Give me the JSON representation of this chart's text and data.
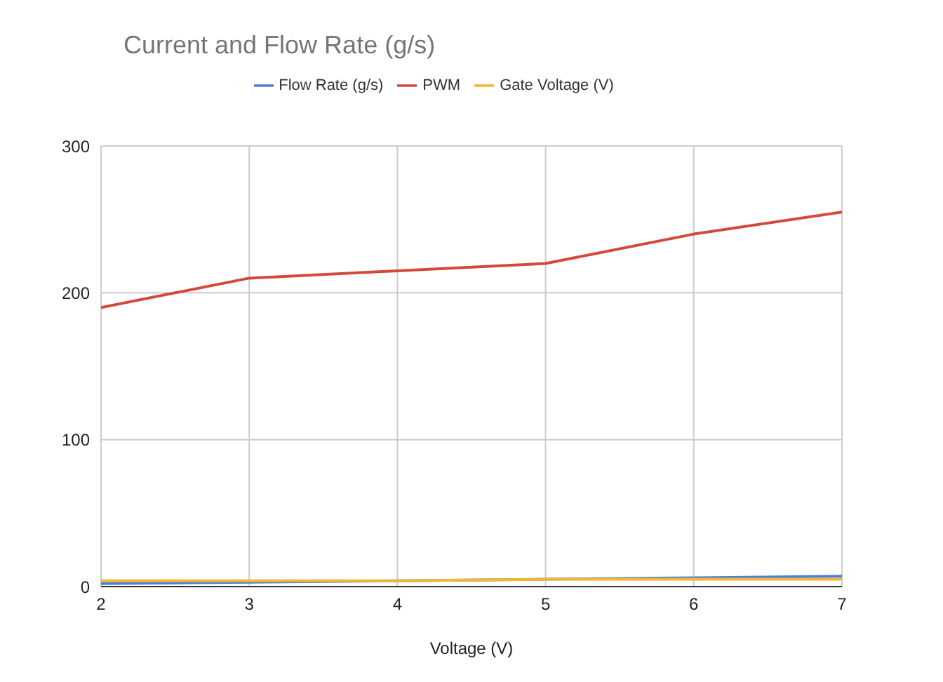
{
  "chart_data": {
    "type": "line",
    "title": "Current and Flow Rate (g/s)",
    "xlabel": "Voltage (V)",
    "x": [
      2,
      3,
      4,
      5,
      6,
      7
    ],
    "series": [
      {
        "name": "Flow Rate (g/s)",
        "color": "#4a7fe0",
        "values": [
          2,
          3,
          4,
          5,
          6,
          7
        ]
      },
      {
        "name": "PWM",
        "color": "#d24a3c",
        "values": [
          190,
          210,
          215,
          220,
          240,
          255
        ]
      },
      {
        "name": "Gate Voltage (V)",
        "color": "#f2b731",
        "values": [
          4,
          4,
          4,
          5,
          5,
          5
        ]
      }
    ],
    "xlim": [
      2,
      7
    ],
    "xticks": [
      2,
      3,
      4,
      5,
      6,
      7
    ],
    "ylim": [
      0,
      300
    ],
    "yticks": [
      0,
      100,
      200,
      300
    ],
    "grid": true,
    "legend": "top",
    "marker": "none",
    "line_style": "solid"
  }
}
